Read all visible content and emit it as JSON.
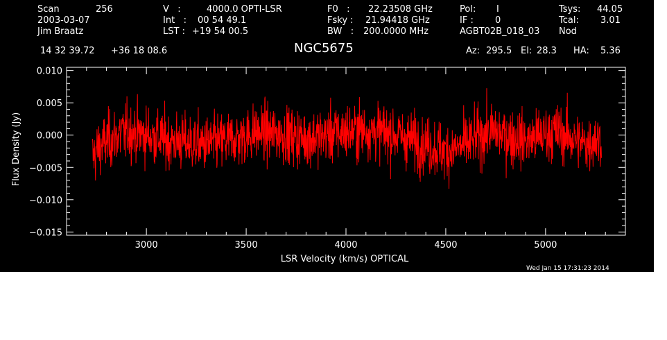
{
  "header": {
    "scan_label": "Scan",
    "scan_value": "256",
    "date": "2003-03-07",
    "observer": "Jim Braatz",
    "v_label": "V   :",
    "v_value": "4000.0 OPTI-LSR",
    "int_label": "Int   :",
    "int_value": "00 54 49.1",
    "lst_label": "LST :",
    "lst_value": "+19 54 00.5",
    "f0_label": "F0   :",
    "f0_value": "22.23508 GHz",
    "fsky_label": "Fsky :",
    "fsky_value": "21.94418 GHz",
    "bw_label": "BW   :",
    "bw_value": "200.0000 MHz",
    "pol_label": "Pol:",
    "pol_value": "I",
    "if_label": "IF :",
    "if_value": "0",
    "project": "AGBT02B_018_03",
    "tsys_label": "Tsys:",
    "tsys_value": "44.05",
    "tcal_label": "Tcal:",
    "tcal_value": "3.01",
    "mode": "Nod",
    "ra": "14 32 39.72",
    "dec": "+36 18 08.6",
    "source": "NGC5675",
    "az_label": "Az:",
    "az_value": "295.5",
    "el_label": "El:",
    "el_value": "28.3",
    "ha_label": "HA:",
    "ha_value": "5.36",
    "timestamp": "Wed Jan 15 17:31:23 2014"
  },
  "colors": {
    "background": "#000000",
    "axes": "#ffffff",
    "series": "#ff0000"
  },
  "chart_data": {
    "type": "line",
    "xlabel": "LSR Velocity (km/s) OPTICAL",
    "ylabel": "Flux Density (Jy)",
    "xlim": [
      2600,
      5400
    ],
    "ylim": [
      -0.0155,
      0.0105
    ],
    "xticks": [
      3000,
      3500,
      4000,
      4500,
      5000
    ],
    "xtick_labels": [
      "3000",
      "3500",
      "4000",
      "4500",
      "5000"
    ],
    "yticks": [
      -0.015,
      -0.01,
      -0.005,
      0.0,
      0.005,
      0.01
    ],
    "ytick_labels": [
      "−0.015",
      "−0.010",
      "−0.005",
      "0.000",
      "0.005",
      "0.010"
    ],
    "grid": false,
    "series": [
      {
        "x": [
          2730,
          2760,
          2800,
          2850,
          2900,
          2950,
          3000,
          3050,
          3100,
          3150,
          3200,
          3250,
          3300,
          3350,
          3400,
          3450,
          3500,
          3550,
          3600,
          3650,
          3700,
          3750,
          3800,
          3850,
          3900,
          3950,
          4000,
          4050,
          4100,
          4150,
          4200,
          4250,
          4300,
          4350,
          4400,
          4450,
          4500,
          4550,
          4600,
          4650,
          4700,
          4750,
          4800,
          4850,
          4900,
          4950,
          5000,
          5050,
          5100,
          5150,
          5200,
          5250,
          5280
        ],
        "y": [
          -0.0035,
          -0.002,
          -0.001,
          -0.0002,
          0.0005,
          0.0003,
          0.0,
          -0.0003,
          -0.0008,
          -0.001,
          -0.0012,
          -0.0013,
          -0.0014,
          -0.0012,
          -0.0008,
          -0.0005,
          -0.0002,
          0.0005,
          0.0003,
          0.0002,
          0.0,
          -0.0003,
          -0.0005,
          -0.0003,
          0.0,
          0.0003,
          0.0005,
          0.0007,
          0.0008,
          0.0006,
          0.0003,
          0.0,
          -0.0005,
          -0.001,
          -0.0015,
          -0.002,
          -0.0025,
          -0.0022,
          -0.0015,
          -0.0005,
          0.0003,
          0.0005,
          0.0,
          -0.0005,
          -0.0008,
          -0.0005,
          0.0003,
          0.0005,
          0.0,
          -0.0008,
          -0.0015,
          -0.0005,
          -0.001
        ],
        "noise_rms": 0.0022
      }
    ]
  }
}
